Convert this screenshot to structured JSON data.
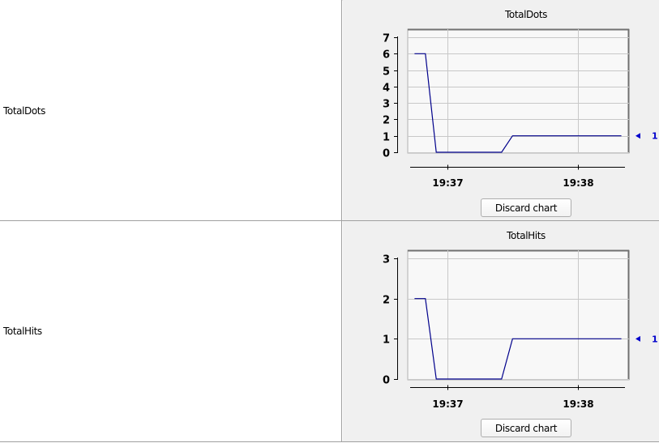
{
  "rows": [
    {
      "label": "TotalDots",
      "chart_title": "TotalDots",
      "discard_label": "Discard chart",
      "end_value_label": "1"
    },
    {
      "label": "TotalHits",
      "chart_title": "TotalHits",
      "discard_label": "Discard chart",
      "end_value_label": "1"
    }
  ],
  "colors": {
    "line": "#00008b",
    "marker": "#0000cc",
    "plot_bg": "#f8f8f8",
    "grid": "#c8c8c8",
    "panel_bg": "#f0f0f0"
  },
  "chart_data": [
    {
      "type": "line",
      "title": "TotalDots",
      "xlabel": "",
      "ylabel": "",
      "x_ticks": [
        "19:37",
        "19:38"
      ],
      "ylim": [
        0,
        7
      ],
      "y_ticks": [
        0,
        1,
        2,
        3,
        4,
        5,
        6,
        7
      ],
      "grid": true,
      "series": [
        {
          "x": [
            "19:36:45",
            "19:36:50",
            "19:36:55",
            "19:37:25",
            "19:37:30",
            "19:38:20"
          ],
          "values": [
            6,
            6,
            0,
            0,
            1,
            1
          ]
        }
      ],
      "last_value": 1
    },
    {
      "type": "line",
      "title": "TotalHits",
      "xlabel": "",
      "ylabel": "",
      "x_ticks": [
        "19:37",
        "19:38"
      ],
      "ylim": [
        0,
        3
      ],
      "y_ticks": [
        0,
        1,
        2,
        3
      ],
      "grid": true,
      "series": [
        {
          "x": [
            "19:36:45",
            "19:36:50",
            "19:36:55",
            "19:37:25",
            "19:37:30",
            "19:38:20"
          ],
          "values": [
            2,
            2,
            0,
            0,
            1,
            1
          ]
        }
      ],
      "last_value": 1
    }
  ]
}
